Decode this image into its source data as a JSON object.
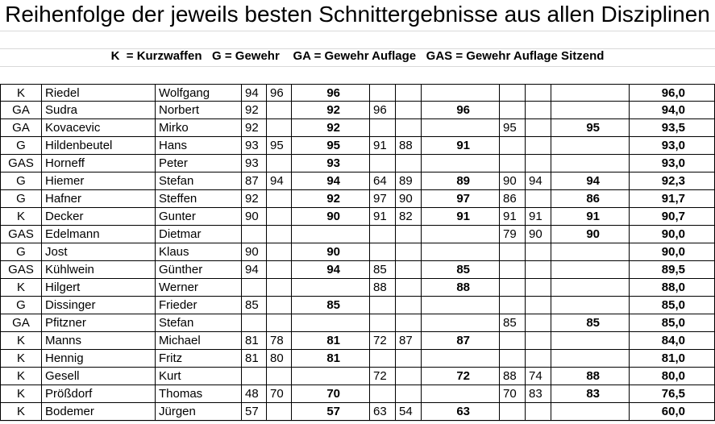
{
  "header": {
    "title": "Reihenfolge der jeweils besten Schnittergebnisse aus allen Disziplinen",
    "legend": "K  = Kurzwaffen   G = Gewehr    GA = Gewehr Auflage   GAS = Gewehr Auflage Sitzend"
  },
  "table": {
    "rows": [
      [
        "K",
        "Riedel",
        "Wolfgang",
        "94",
        "96",
        "96",
        null,
        null,
        null,
        null,
        null,
        null,
        "96,0"
      ],
      [
        "GA",
        "Sudra",
        "Norbert",
        "92",
        null,
        "92",
        "96",
        null,
        "96",
        null,
        null,
        null,
        "94,0"
      ],
      [
        "GA",
        "Kovacevic",
        "Mirko",
        "92",
        null,
        "92",
        null,
        null,
        null,
        "95",
        null,
        "95",
        "93,5"
      ],
      [
        "G",
        "Hildenbeutel",
        "Hans",
        "93",
        "95",
        "95",
        "91",
        "88",
        "91",
        null,
        null,
        null,
        "93,0"
      ],
      [
        "GAS",
        "Horneff",
        "Peter",
        "93",
        null,
        "93",
        null,
        null,
        null,
        null,
        null,
        null,
        "93,0"
      ],
      [
        "G",
        "Hiemer",
        "Stefan",
        "87",
        "94",
        "94",
        "64",
        "89",
        "89",
        "90",
        "94",
        "94",
        "92,3"
      ],
      [
        "G",
        "Hafner",
        "Steffen",
        "92",
        null,
        "92",
        "97",
        "90",
        "97",
        "86",
        null,
        "86",
        "91,7"
      ],
      [
        "K",
        "Decker",
        "Gunter",
        "90",
        null,
        "90",
        "91",
        "82",
        "91",
        "91",
        "91",
        "91",
        "90,7"
      ],
      [
        "GAS",
        "Edelmann",
        "Dietmar",
        null,
        null,
        null,
        null,
        null,
        null,
        "79",
        "90",
        "90",
        "90,0"
      ],
      [
        "G",
        "Jost",
        "Klaus",
        "90",
        null,
        "90",
        null,
        null,
        null,
        null,
        null,
        null,
        "90,0"
      ],
      [
        "GAS",
        "Kühlwein",
        "Günther",
        "94",
        null,
        "94",
        "85",
        null,
        "85",
        null,
        null,
        null,
        "89,5"
      ],
      [
        "K",
        "Hilgert",
        "Werner",
        null,
        null,
        null,
        "88",
        null,
        "88",
        null,
        null,
        null,
        "88,0"
      ],
      [
        "G",
        "Dissinger",
        "Frieder",
        "85",
        null,
        "85",
        null,
        null,
        null,
        null,
        null,
        null,
        "85,0"
      ],
      [
        "GA",
        "Pfitzner",
        "Stefan",
        null,
        null,
        null,
        null,
        null,
        null,
        "85",
        null,
        "85",
        "85,0"
      ],
      [
        "K",
        "Manns",
        "Michael",
        "81",
        "78",
        "81",
        "72",
        "87",
        "87",
        null,
        null,
        null,
        "84,0"
      ],
      [
        "K",
        "Hennig",
        "Fritz",
        "81",
        "80",
        "81",
        null,
        null,
        null,
        null,
        null,
        null,
        "81,0"
      ],
      [
        "K",
        "Gesell",
        "Kurt",
        null,
        null,
        null,
        "72",
        null,
        "72",
        "88",
        "74",
        "88",
        "80,0"
      ],
      [
        "K",
        "Prößdorf",
        "Thomas",
        "48",
        "70",
        "70",
        null,
        null,
        null,
        "70",
        "83",
        "83",
        "76,5"
      ],
      [
        "K",
        "Bodemer",
        "Jürgen",
        "57",
        null,
        "57",
        "63",
        "54",
        "63",
        null,
        null,
        null,
        "60,0"
      ]
    ]
  }
}
